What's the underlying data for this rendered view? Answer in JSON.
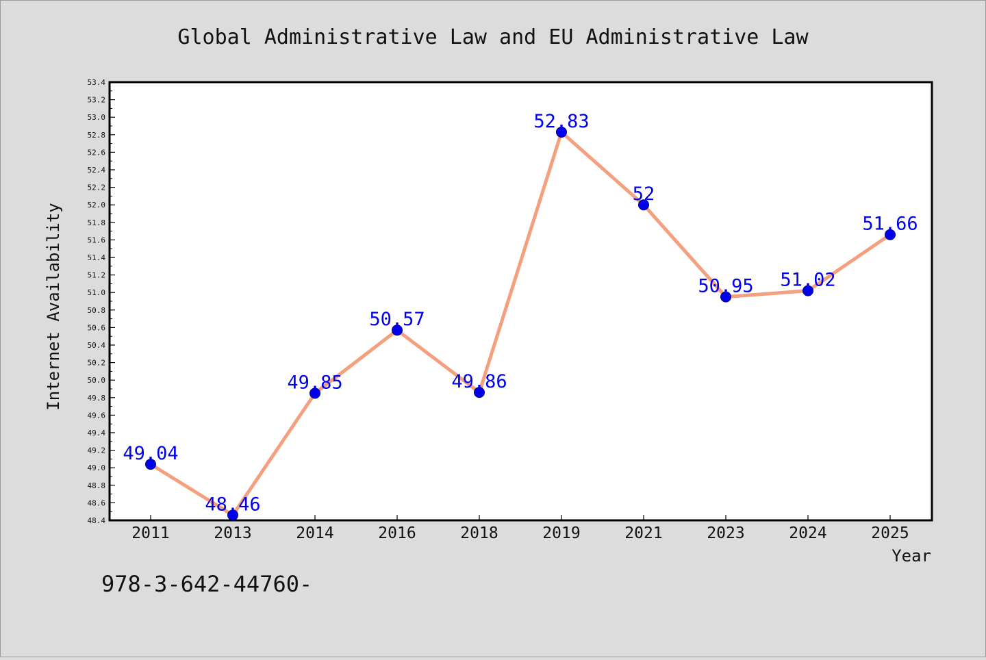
{
  "chart_data": {
    "type": "line",
    "title": "Global Administrative Law and EU Administrative Law",
    "xlabel": "Year",
    "ylabel": "Internet Availability",
    "categories": [
      "2011",
      "2013",
      "2014",
      "2016",
      "2018",
      "2019",
      "2021",
      "2023",
      "2024",
      "2025"
    ],
    "series": [
      {
        "values": [
          49.04,
          48.46,
          49.85,
          50.57,
          49.86,
          52.83,
          52,
          50.95,
          51.02,
          51.66
        ],
        "labels": [
          "49.04",
          "48.46",
          "49.85",
          "50.57",
          "49.86",
          "52.83",
          "52",
          "50.95",
          "51.02",
          "51.66"
        ]
      }
    ],
    "ylim": [
      48.4,
      53.4
    ],
    "yticks": [
      "48.4",
      "48.6",
      "48.8",
      "49.0",
      "49.2",
      "49.4",
      "49.6",
      "49.8",
      "50.0",
      "50.2",
      "50.4",
      "50.6",
      "50.8",
      "51.0",
      "51.2",
      "51.4",
      "51.6",
      "51.8",
      "52.0",
      "52.2",
      "52.4",
      "52.6",
      "52.8",
      "53.0",
      "53.2",
      "53.4"
    ],
    "grid": false,
    "legend": "none",
    "colors": {
      "line": "#f4a07e",
      "marker": "#0000ee",
      "label": "#0000ee",
      "background": "#dcdcdc",
      "plot_background": "#ffffff"
    },
    "footnote": "978-3-642-44760-"
  }
}
